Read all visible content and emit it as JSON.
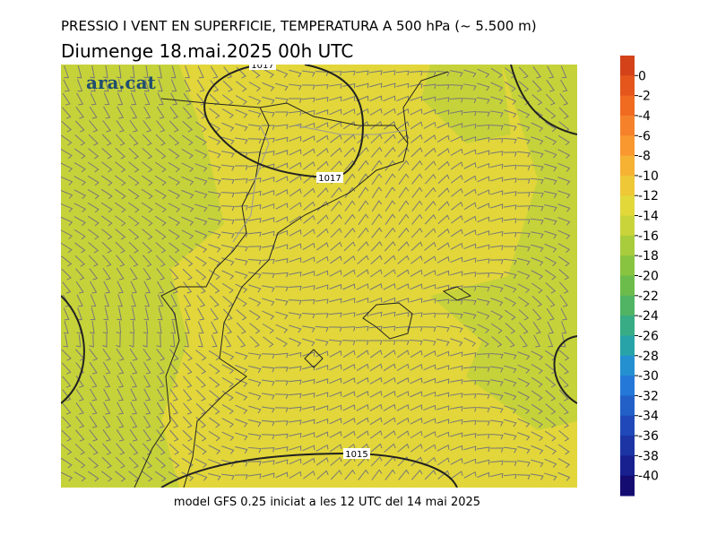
{
  "header": {
    "title": "PRESSIO I VENT EN SUPERFICIE, TEMPERATURA A 500 hPa (~ 5.500 m)",
    "subtitle": "Diumenge  18.mai.2025 00h UTC"
  },
  "logo": "ara.cat",
  "footer": "model GFS 0.25 iniciat a les 12 UTC del 14 mai 2025",
  "contours": [
    "1017",
    "1017",
    "1015"
  ],
  "colorbar": {
    "ticks": [
      0,
      -2,
      -4,
      -6,
      -8,
      -10,
      -12,
      -14,
      -16,
      -18,
      -20,
      -22,
      -24,
      -26,
      -28,
      -30,
      -32,
      -34,
      -36,
      -38,
      -40
    ],
    "colors": [
      "#d4421a",
      "#e4561c",
      "#f06a20",
      "#f5822a",
      "#f8982e",
      "#f6b232",
      "#eec836",
      "#e2d83a",
      "#c8d43a",
      "#a8cc3c",
      "#88c440",
      "#6cbc4c",
      "#50b464",
      "#38ac84",
      "#28a4a8",
      "#2490d0",
      "#2478d8",
      "#2260c8",
      "#2048b8",
      "#1c34a4",
      "#182090",
      "#140c70"
    ]
  }
}
